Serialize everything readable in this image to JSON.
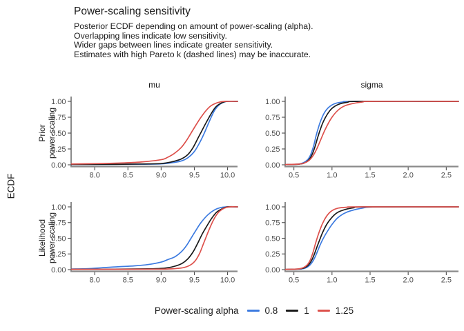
{
  "title": "Power-scaling sensitivity",
  "subtitle_lines": [
    "Posterior ECDF depending on amount of power-scaling (alpha).",
    "Overlapping lines indicate low sensitivity.",
    "Wider gaps between lines indicate greater sensitivity.",
    "Estimates with high Pareto k (dashed lines) may be inaccurate."
  ],
  "y_axis_label": "ECDF",
  "facet_columns": [
    "mu",
    "sigma"
  ],
  "facet_rows": [
    {
      "line1": "Prior",
      "line2": "power-scaling"
    },
    {
      "line1": "Likelihood",
      "line2": "power-scaling"
    }
  ],
  "legend": {
    "title": "Power-scaling alpha",
    "entries": [
      {
        "label": "0.8",
        "color": "#3D7BE0"
      },
      {
        "label": "1",
        "color": "#1A1A1A"
      },
      {
        "label": "1.25",
        "color": "#DD514C"
      }
    ]
  },
  "colors": {
    "axis_line_y": "#3d3d3d",
    "axis_line_x": "#8a8a8a",
    "tick_mark": "#4d4d4d",
    "tick_label": "#4d4d4d"
  },
  "chart_data": [
    {
      "type": "line",
      "panel": "mu-prior",
      "column": "mu",
      "row": "Prior power-scaling",
      "x_domain": [
        7.65,
        10.15
      ],
      "y_domain": [
        0,
        1
      ],
      "x_ticks": [
        {
          "v": 8.0,
          "label": "8.0"
        },
        {
          "v": 8.5,
          "label": "8.5"
        },
        {
          "v": 9.0,
          "label": "9.0"
        },
        {
          "v": 9.5,
          "label": "9.5"
        },
        {
          "v": 10.0,
          "label": "10.0"
        }
      ],
      "y_ticks": [
        {
          "v": 0.0,
          "label": "0.00"
        },
        {
          "v": 0.25,
          "label": "0.25"
        },
        {
          "v": 0.5,
          "label": "0.50"
        },
        {
          "v": 0.75,
          "label": "0.75"
        },
        {
          "v": 1.0,
          "label": "1.00"
        }
      ],
      "series": [
        {
          "name": "0.8",
          "color": "#3D7BE0",
          "points": [
            [
              7.65,
              0.005
            ],
            [
              8.2,
              0.007
            ],
            [
              8.7,
              0.01
            ],
            [
              9.0,
              0.015
            ],
            [
              9.15,
              0.03
            ],
            [
              9.3,
              0.06
            ],
            [
              9.4,
              0.11
            ],
            [
              9.5,
              0.21
            ],
            [
              9.58,
              0.35
            ],
            [
              9.65,
              0.5
            ],
            [
              9.72,
              0.67
            ],
            [
              9.8,
              0.85
            ],
            [
              9.88,
              0.95
            ],
            [
              9.95,
              0.99
            ],
            [
              10.02,
              1
            ],
            [
              10.15,
              1
            ]
          ]
        },
        {
          "name": "1",
          "color": "#1A1A1A",
          "points": [
            [
              7.65,
              0.006
            ],
            [
              8.2,
              0.008
            ],
            [
              8.7,
              0.013
            ],
            [
              9.0,
              0.02
            ],
            [
              9.15,
              0.045
            ],
            [
              9.3,
              0.09
            ],
            [
              9.4,
              0.16
            ],
            [
              9.48,
              0.27
            ],
            [
              9.56,
              0.43
            ],
            [
              9.62,
              0.55
            ],
            [
              9.68,
              0.67
            ],
            [
              9.75,
              0.8
            ],
            [
              9.82,
              0.91
            ],
            [
              9.9,
              0.97
            ],
            [
              9.98,
              1
            ],
            [
              10.15,
              1
            ]
          ]
        },
        {
          "name": "1.25",
          "color": "#DD514C",
          "points": [
            [
              7.65,
              0.012
            ],
            [
              8.0,
              0.018
            ],
            [
              8.4,
              0.028
            ],
            [
              8.7,
              0.045
            ],
            [
              9.0,
              0.08
            ],
            [
              9.1,
              0.12
            ],
            [
              9.2,
              0.18
            ],
            [
              9.3,
              0.27
            ],
            [
              9.38,
              0.38
            ],
            [
              9.45,
              0.5
            ],
            [
              9.52,
              0.62
            ],
            [
              9.6,
              0.75
            ],
            [
              9.68,
              0.86
            ],
            [
              9.75,
              0.93
            ],
            [
              9.85,
              0.98
            ],
            [
              9.95,
              1
            ],
            [
              10.15,
              1
            ]
          ]
        }
      ]
    },
    {
      "type": "line",
      "panel": "sigma-prior",
      "column": "sigma",
      "row": "Prior power-scaling",
      "x_domain": [
        0.39,
        2.66
      ],
      "y_domain": [
        0,
        1
      ],
      "x_ticks": [
        {
          "v": 0.5,
          "label": "0.5"
        },
        {
          "v": 1.0,
          "label": "1.0"
        },
        {
          "v": 1.5,
          "label": "1.5"
        },
        {
          "v": 2.0,
          "label": "2.0"
        },
        {
          "v": 2.5,
          "label": "2.5"
        }
      ],
      "y_ticks": [
        {
          "v": 0.0,
          "label": "0.00"
        },
        {
          "v": 0.25,
          "label": "0.25"
        },
        {
          "v": 0.5,
          "label": "0.50"
        },
        {
          "v": 0.75,
          "label": "0.75"
        },
        {
          "v": 1.0,
          "label": "1.00"
        }
      ],
      "series": [
        {
          "name": "0.8",
          "color": "#3D7BE0",
          "points": [
            [
              0.39,
              0.003
            ],
            [
              0.55,
              0.01
            ],
            [
              0.62,
              0.03
            ],
            [
              0.68,
              0.08
            ],
            [
              0.72,
              0.16
            ],
            [
              0.76,
              0.3
            ],
            [
              0.79,
              0.45
            ],
            [
              0.82,
              0.58
            ],
            [
              0.86,
              0.72
            ],
            [
              0.91,
              0.84
            ],
            [
              0.97,
              0.92
            ],
            [
              1.05,
              0.97
            ],
            [
              1.15,
              0.99
            ],
            [
              1.3,
              1
            ],
            [
              2.66,
              1
            ]
          ]
        },
        {
          "name": "1",
          "color": "#1A1A1A",
          "points": [
            [
              0.39,
              0.003
            ],
            [
              0.56,
              0.01
            ],
            [
              0.63,
              0.025
            ],
            [
              0.69,
              0.07
            ],
            [
              0.73,
              0.14
            ],
            [
              0.77,
              0.26
            ],
            [
              0.81,
              0.42
            ],
            [
              0.85,
              0.57
            ],
            [
              0.89,
              0.69
            ],
            [
              0.94,
              0.8
            ],
            [
              1.0,
              0.89
            ],
            [
              1.08,
              0.95
            ],
            [
              1.2,
              0.985
            ],
            [
              1.38,
              1
            ],
            [
              2.66,
              1
            ]
          ]
        },
        {
          "name": "1.25",
          "color": "#DD514C",
          "points": [
            [
              0.39,
              0.004
            ],
            [
              0.57,
              0.012
            ],
            [
              0.64,
              0.03
            ],
            [
              0.7,
              0.07
            ],
            [
              0.75,
              0.14
            ],
            [
              0.8,
              0.25
            ],
            [
              0.85,
              0.39
            ],
            [
              0.9,
              0.53
            ],
            [
              0.95,
              0.65
            ],
            [
              1.0,
              0.75
            ],
            [
              1.07,
              0.85
            ],
            [
              1.15,
              0.92
            ],
            [
              1.25,
              0.96
            ],
            [
              1.4,
              0.99
            ],
            [
              1.55,
              1
            ],
            [
              2.66,
              1
            ]
          ]
        }
      ]
    },
    {
      "type": "line",
      "panel": "mu-likelihood",
      "column": "mu",
      "row": "Likelihood power-scaling",
      "x_domain": [
        7.65,
        10.15
      ],
      "y_domain": [
        0,
        1
      ],
      "x_ticks": [
        {
          "v": 8.0,
          "label": "8.0"
        },
        {
          "v": 8.5,
          "label": "8.5"
        },
        {
          "v": 9.0,
          "label": "9.0"
        },
        {
          "v": 9.5,
          "label": "9.5"
        },
        {
          "v": 10.0,
          "label": "10.0"
        }
      ],
      "y_ticks": [
        {
          "v": 0.0,
          "label": "0.00"
        },
        {
          "v": 0.25,
          "label": "0.25"
        },
        {
          "v": 0.5,
          "label": "0.50"
        },
        {
          "v": 0.75,
          "label": "0.75"
        },
        {
          "v": 1.0,
          "label": "1.00"
        }
      ],
      "series": [
        {
          "name": "0.8",
          "color": "#3D7BE0",
          "points": [
            [
              7.65,
              0.01
            ],
            [
              7.9,
              0.015
            ],
            [
              8.1,
              0.03
            ],
            [
              8.35,
              0.045
            ],
            [
              8.6,
              0.06
            ],
            [
              8.8,
              0.08
            ],
            [
              9.0,
              0.12
            ],
            [
              9.1,
              0.16
            ],
            [
              9.2,
              0.2
            ],
            [
              9.3,
              0.28
            ],
            [
              9.38,
              0.38
            ],
            [
              9.45,
              0.5
            ],
            [
              9.52,
              0.62
            ],
            [
              9.6,
              0.75
            ],
            [
              9.7,
              0.87
            ],
            [
              9.8,
              0.95
            ],
            [
              9.9,
              0.99
            ],
            [
              10.0,
              1
            ],
            [
              10.15,
              1
            ]
          ]
        },
        {
          "name": "1",
          "color": "#1A1A1A",
          "points": [
            [
              7.65,
              0.006
            ],
            [
              8.3,
              0.008
            ],
            [
              8.8,
              0.012
            ],
            [
              9.0,
              0.02
            ],
            [
              9.15,
              0.04
            ],
            [
              9.3,
              0.09
            ],
            [
              9.4,
              0.17
            ],
            [
              9.48,
              0.28
            ],
            [
              9.55,
              0.42
            ],
            [
              9.62,
              0.57
            ],
            [
              9.68,
              0.68
            ],
            [
              9.75,
              0.8
            ],
            [
              9.83,
              0.91
            ],
            [
              9.9,
              0.96
            ],
            [
              10.0,
              1
            ],
            [
              10.15,
              1
            ]
          ]
        },
        {
          "name": "1.25",
          "color": "#DD514C",
          "points": [
            [
              7.65,
              0.005
            ],
            [
              8.5,
              0.006
            ],
            [
              9.0,
              0.008
            ],
            [
              9.2,
              0.015
            ],
            [
              9.35,
              0.035
            ],
            [
              9.45,
              0.08
            ],
            [
              9.52,
              0.15
            ],
            [
              9.58,
              0.26
            ],
            [
              9.64,
              0.42
            ],
            [
              9.7,
              0.58
            ],
            [
              9.76,
              0.73
            ],
            [
              9.82,
              0.85
            ],
            [
              9.88,
              0.93
            ],
            [
              9.95,
              0.98
            ],
            [
              10.03,
              1
            ],
            [
              10.15,
              1
            ]
          ]
        }
      ]
    },
    {
      "type": "line",
      "panel": "sigma-likelihood",
      "column": "sigma",
      "row": "Likelihood power-scaling",
      "x_domain": [
        0.39,
        2.66
      ],
      "y_domain": [
        0,
        1
      ],
      "x_ticks": [
        {
          "v": 0.5,
          "label": "0.5"
        },
        {
          "v": 1.0,
          "label": "1.0"
        },
        {
          "v": 1.5,
          "label": "1.5"
        },
        {
          "v": 2.0,
          "label": "2.0"
        },
        {
          "v": 2.5,
          "label": "2.5"
        }
      ],
      "y_ticks": [
        {
          "v": 0.0,
          "label": "0.00"
        },
        {
          "v": 0.25,
          "label": "0.25"
        },
        {
          "v": 0.5,
          "label": "0.50"
        },
        {
          "v": 0.75,
          "label": "0.75"
        },
        {
          "v": 1.0,
          "label": "1.00"
        }
      ],
      "series": [
        {
          "name": "0.8",
          "color": "#3D7BE0",
          "points": [
            [
              0.39,
              0.003
            ],
            [
              0.57,
              0.008
            ],
            [
              0.64,
              0.02
            ],
            [
              0.69,
              0.05
            ],
            [
              0.73,
              0.1
            ],
            [
              0.77,
              0.18
            ],
            [
              0.81,
              0.29
            ],
            [
              0.85,
              0.41
            ],
            [
              0.9,
              0.53
            ],
            [
              0.95,
              0.63
            ],
            [
              1.0,
              0.72
            ],
            [
              1.07,
              0.82
            ],
            [
              1.15,
              0.89
            ],
            [
              1.25,
              0.94
            ],
            [
              1.4,
              0.98
            ],
            [
              1.6,
              1
            ],
            [
              2.66,
              1
            ]
          ]
        },
        {
          "name": "1",
          "color": "#1A1A1A",
          "points": [
            [
              0.39,
              0.003
            ],
            [
              0.56,
              0.01
            ],
            [
              0.63,
              0.025
            ],
            [
              0.68,
              0.06
            ],
            [
              0.72,
              0.12
            ],
            [
              0.76,
              0.22
            ],
            [
              0.8,
              0.35
            ],
            [
              0.84,
              0.48
            ],
            [
              0.88,
              0.6
            ],
            [
              0.93,
              0.72
            ],
            [
              0.99,
              0.82
            ],
            [
              1.06,
              0.9
            ],
            [
              1.15,
              0.95
            ],
            [
              1.28,
              0.985
            ],
            [
              1.45,
              1
            ],
            [
              2.66,
              1
            ]
          ]
        },
        {
          "name": "1.25",
          "color": "#DD514C",
          "points": [
            [
              0.39,
              0.004
            ],
            [
              0.55,
              0.01
            ],
            [
              0.62,
              0.03
            ],
            [
              0.67,
              0.07
            ],
            [
              0.71,
              0.14
            ],
            [
              0.75,
              0.27
            ],
            [
              0.78,
              0.4
            ],
            [
              0.81,
              0.52
            ],
            [
              0.85,
              0.66
            ],
            [
              0.89,
              0.77
            ],
            [
              0.94,
              0.87
            ],
            [
              1.0,
              0.94
            ],
            [
              1.08,
              0.98
            ],
            [
              1.2,
              0.995
            ],
            [
              1.35,
              1
            ],
            [
              2.66,
              1
            ]
          ]
        }
      ]
    }
  ]
}
